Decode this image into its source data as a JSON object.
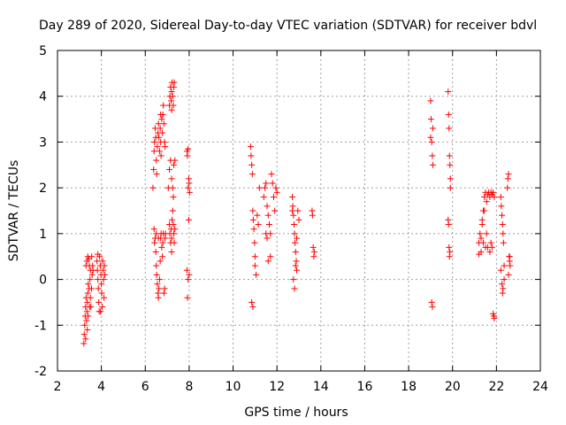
{
  "chart_data": {
    "type": "scatter",
    "title": "Day 289 of 2020, Sidereal Day-to-day VTEC variation (SDTVAR) for receiver bdvl",
    "xlabel": "GPS time / hours",
    "ylabel": "SDTVAR / TECUs",
    "xlim": [
      2,
      24
    ],
    "ylim": [
      -2,
      5
    ],
    "xticks": [
      2,
      4,
      6,
      8,
      10,
      12,
      14,
      16,
      18,
      20,
      22,
      24
    ],
    "yticks": [
      -2,
      -1,
      0,
      1,
      2,
      3,
      4,
      5
    ],
    "grid": true,
    "marker": "+",
    "color": "#ff0000",
    "series": [
      {
        "name": "SDTVAR",
        "points": [
          [
            3.2,
            -1.4
          ],
          [
            3.22,
            -1.2
          ],
          [
            3.24,
            -1.0
          ],
          [
            3.26,
            -0.8
          ],
          [
            3.28,
            -0.6
          ],
          [
            3.3,
            -0.4
          ],
          [
            3.32,
            -0.9
          ],
          [
            3.34,
            -0.7
          ],
          [
            3.36,
            -0.5
          ],
          [
            3.38,
            -0.3
          ],
          [
            3.3,
            0.3
          ],
          [
            3.34,
            0.4
          ],
          [
            3.38,
            0.5
          ],
          [
            3.42,
            0.45
          ],
          [
            3.45,
            0.3
          ],
          [
            3.4,
            -0.1
          ],
          [
            3.44,
            -0.2
          ],
          [
            3.48,
            0.0
          ],
          [
            3.5,
            -0.4
          ],
          [
            3.52,
            -0.6
          ],
          [
            3.55,
            -0.2
          ],
          [
            3.58,
            0.1
          ],
          [
            3.6,
            0.3
          ],
          [
            3.62,
            0.2
          ],
          [
            3.5,
            0.2
          ],
          [
            3.56,
            0.5
          ],
          [
            3.46,
            -0.6
          ],
          [
            3.36,
            -1.1
          ],
          [
            3.28,
            -1.3
          ],
          [
            3.4,
            -0.8
          ],
          [
            3.8,
            0.4
          ],
          [
            3.82,
            0.2
          ],
          [
            3.84,
            0.0
          ],
          [
            3.86,
            -0.2
          ],
          [
            3.88,
            -0.5
          ],
          [
            3.9,
            -0.7
          ],
          [
            3.92,
            0.5
          ],
          [
            3.95,
            0.3
          ],
          [
            3.98,
            0.1
          ],
          [
            4.0,
            -0.1
          ],
          [
            4.02,
            -0.3
          ],
          [
            4.04,
            -0.6
          ],
          [
            4.06,
            0.4
          ],
          [
            4.08,
            0.2
          ],
          [
            4.1,
            0.0
          ],
          [
            4.12,
            -0.4
          ],
          [
            4.14,
            0.3
          ],
          [
            4.16,
            0.1
          ],
          [
            3.96,
            -0.7
          ],
          [
            3.84,
            0.55
          ],
          [
            6.35,
            2.0
          ],
          [
            6.38,
            2.4
          ],
          [
            6.4,
            2.8
          ],
          [
            6.42,
            3.0
          ],
          [
            6.45,
            3.3
          ],
          [
            6.48,
            3.1
          ],
          [
            6.5,
            2.6
          ],
          [
            6.52,
            2.3
          ],
          [
            6.55,
            2.9
          ],
          [
            6.58,
            3.2
          ],
          [
            6.6,
            3.4
          ],
          [
            6.62,
            3.1
          ],
          [
            6.65,
            2.8
          ],
          [
            6.68,
            3.3
          ],
          [
            6.7,
            3.0
          ],
          [
            6.72,
            2.7
          ],
          [
            6.75,
            3.5
          ],
          [
            6.78,
            3.2
          ],
          [
            6.8,
            3.6
          ],
          [
            6.82,
            3.8
          ],
          [
            6.85,
            3.4
          ],
          [
            6.88,
            3.0
          ],
          [
            6.9,
            2.9
          ],
          [
            6.7,
            3.6
          ],
          [
            6.4,
            1.1
          ],
          [
            6.42,
            0.8
          ],
          [
            6.45,
            0.9
          ],
          [
            6.48,
            0.6
          ],
          [
            6.5,
            0.3
          ],
          [
            6.52,
            0.1
          ],
          [
            6.55,
            -0.1
          ],
          [
            6.58,
            -0.3
          ],
          [
            6.6,
            -0.4
          ],
          [
            6.62,
            -0.2
          ],
          [
            6.65,
            0.0
          ],
          [
            6.68,
            0.4
          ],
          [
            6.7,
            0.9
          ],
          [
            6.72,
            1.0
          ],
          [
            6.75,
            0.7
          ],
          [
            6.78,
            0.5
          ],
          [
            6.8,
            0.8
          ],
          [
            6.82,
            1.0
          ],
          [
            6.85,
            -0.3
          ],
          [
            6.88,
            -0.2
          ],
          [
            6.9,
            0.9
          ],
          [
            6.92,
            1.0
          ],
          [
            6.6,
            0.9
          ],
          [
            6.5,
            1.0
          ],
          [
            7.1,
            3.8
          ],
          [
            7.12,
            4.0
          ],
          [
            7.15,
            4.2
          ],
          [
            7.18,
            3.9
          ],
          [
            7.2,
            4.1
          ],
          [
            7.22,
            4.3
          ],
          [
            7.25,
            4.0
          ],
          [
            7.28,
            3.8
          ],
          [
            7.3,
            4.2
          ],
          [
            7.32,
            4.3
          ],
          [
            7.2,
            3.7
          ],
          [
            7.1,
            1.2
          ],
          [
            7.12,
            1.0
          ],
          [
            7.15,
            0.8
          ],
          [
            7.18,
            1.1
          ],
          [
            7.2,
            0.9
          ],
          [
            7.22,
            1.3
          ],
          [
            7.25,
            1.5
          ],
          [
            7.28,
            1.2
          ],
          [
            7.3,
            1.0
          ],
          [
            7.32,
            0.8
          ],
          [
            7.35,
            1.1
          ],
          [
            7.1,
            2.4
          ],
          [
            7.15,
            2.6
          ],
          [
            7.2,
            2.2
          ],
          [
            7.25,
            2.0
          ],
          [
            7.3,
            2.5
          ],
          [
            7.35,
            2.6
          ],
          [
            7.28,
            1.8
          ],
          [
            7.05,
            2.0
          ],
          [
            7.2,
            0.6
          ],
          [
            7.9,
            2.8
          ],
          [
            7.92,
            2.7
          ],
          [
            7.95,
            2.85
          ],
          [
            7.98,
            2.2
          ],
          [
            8.0,
            2.1
          ],
          [
            8.02,
            1.9
          ],
          [
            7.95,
            2.0
          ],
          [
            7.98,
            1.3
          ],
          [
            7.9,
            0.2
          ],
          [
            7.95,
            0.0
          ],
          [
            7.92,
            -0.4
          ],
          [
            8.0,
            0.1
          ],
          [
            10.8,
            2.9
          ],
          [
            10.82,
            2.7
          ],
          [
            10.85,
            2.5
          ],
          [
            10.88,
            2.3
          ],
          [
            10.9,
            1.5
          ],
          [
            10.92,
            1.3
          ],
          [
            10.95,
            1.1
          ],
          [
            10.98,
            0.8
          ],
          [
            11.0,
            0.5
          ],
          [
            10.85,
            -0.5
          ],
          [
            10.9,
            -0.6
          ],
          [
            11.0,
            0.3
          ],
          [
            11.05,
            0.1
          ],
          [
            11.1,
            1.4
          ],
          [
            11.15,
            1.2
          ],
          [
            11.2,
            2.0
          ],
          [
            11.4,
            1.8
          ],
          [
            11.45,
            2.0
          ],
          [
            11.5,
            2.1
          ],
          [
            11.55,
            1.6
          ],
          [
            11.6,
            1.4
          ],
          [
            11.65,
            1.2
          ],
          [
            11.7,
            1.0
          ],
          [
            11.55,
            0.9
          ],
          [
            11.6,
            0.4
          ],
          [
            11.7,
            0.5
          ],
          [
            11.75,
            2.3
          ],
          [
            11.8,
            2.1
          ],
          [
            11.85,
            1.8
          ],
          [
            11.9,
            1.5
          ],
          [
            11.95,
            2.0
          ],
          [
            12.0,
            1.9
          ],
          [
            11.5,
            1.0
          ],
          [
            12.7,
            1.8
          ],
          [
            12.72,
            1.6
          ],
          [
            12.75,
            1.4
          ],
          [
            12.78,
            1.2
          ],
          [
            12.8,
            1.0
          ],
          [
            12.82,
            0.8
          ],
          [
            12.85,
            0.6
          ],
          [
            12.88,
            0.4
          ],
          [
            12.9,
            0.2
          ],
          [
            12.75,
            0.0
          ],
          [
            12.8,
            -0.2
          ],
          [
            12.85,
            0.3
          ],
          [
            12.9,
            0.9
          ],
          [
            12.95,
            1.5
          ],
          [
            13.0,
            1.3
          ],
          [
            12.7,
            1.5
          ],
          [
            13.6,
            1.5
          ],
          [
            13.62,
            1.4
          ],
          [
            13.65,
            0.7
          ],
          [
            13.68,
            0.5
          ],
          [
            13.7,
            0.6
          ],
          [
            19.0,
            3.9
          ],
          [
            19.02,
            3.5
          ],
          [
            19.05,
            3.0
          ],
          [
            19.08,
            2.7
          ],
          [
            19.1,
            2.5
          ],
          [
            19.05,
            -0.5
          ],
          [
            19.08,
            -0.6
          ],
          [
            19.1,
            3.3
          ],
          [
            19.0,
            3.1
          ],
          [
            19.8,
            4.1
          ],
          [
            19.82,
            3.6
          ],
          [
            19.84,
            3.3
          ],
          [
            19.86,
            2.7
          ],
          [
            19.88,
            2.5
          ],
          [
            19.9,
            2.2
          ],
          [
            19.8,
            1.3
          ],
          [
            19.82,
            1.2
          ],
          [
            19.84,
            0.7
          ],
          [
            19.86,
            0.5
          ],
          [
            19.88,
            0.6
          ],
          [
            19.9,
            2.0
          ],
          [
            21.2,
            0.8
          ],
          [
            21.25,
            1.0
          ],
          [
            21.3,
            0.9
          ],
          [
            21.35,
            1.2
          ],
          [
            21.4,
            1.5
          ],
          [
            21.45,
            1.8
          ],
          [
            21.5,
            1.9
          ],
          [
            21.55,
            1.7
          ],
          [
            21.6,
            1.85
          ],
          [
            21.65,
            1.9
          ],
          [
            21.7,
            1.8
          ],
          [
            21.75,
            1.9
          ],
          [
            21.8,
            1.85
          ],
          [
            21.85,
            1.9
          ],
          [
            21.9,
            1.8
          ],
          [
            21.3,
            0.6
          ],
          [
            21.4,
            0.8
          ],
          [
            21.5,
            0.7
          ],
          [
            21.6,
            0.7
          ],
          [
            21.7,
            0.6
          ],
          [
            21.75,
            0.8
          ],
          [
            21.8,
            0.7
          ],
          [
            21.85,
            -0.75
          ],
          [
            21.9,
            -0.85
          ],
          [
            21.88,
            -0.8
          ],
          [
            21.2,
            0.55
          ],
          [
            21.35,
            1.3
          ],
          [
            21.45,
            1.5
          ],
          [
            21.55,
            1.0
          ],
          [
            22.2,
            1.8
          ],
          [
            22.22,
            1.6
          ],
          [
            22.25,
            1.4
          ],
          [
            22.28,
            1.2
          ],
          [
            22.3,
            1.0
          ],
          [
            22.32,
            0.8
          ],
          [
            22.35,
            0.3
          ],
          [
            22.2,
            0.2
          ],
          [
            22.25,
            -0.1
          ],
          [
            22.28,
            -0.3
          ],
          [
            22.3,
            -0.2
          ],
          [
            22.35,
            0.0
          ],
          [
            22.5,
            2.0
          ],
          [
            22.52,
            2.2
          ],
          [
            22.55,
            2.3
          ],
          [
            22.58,
            0.5
          ],
          [
            22.6,
            0.4
          ],
          [
            22.62,
            0.3
          ],
          [
            22.55,
            0.1
          ],
          [
            22.6,
            0.5
          ]
        ]
      }
    ]
  }
}
